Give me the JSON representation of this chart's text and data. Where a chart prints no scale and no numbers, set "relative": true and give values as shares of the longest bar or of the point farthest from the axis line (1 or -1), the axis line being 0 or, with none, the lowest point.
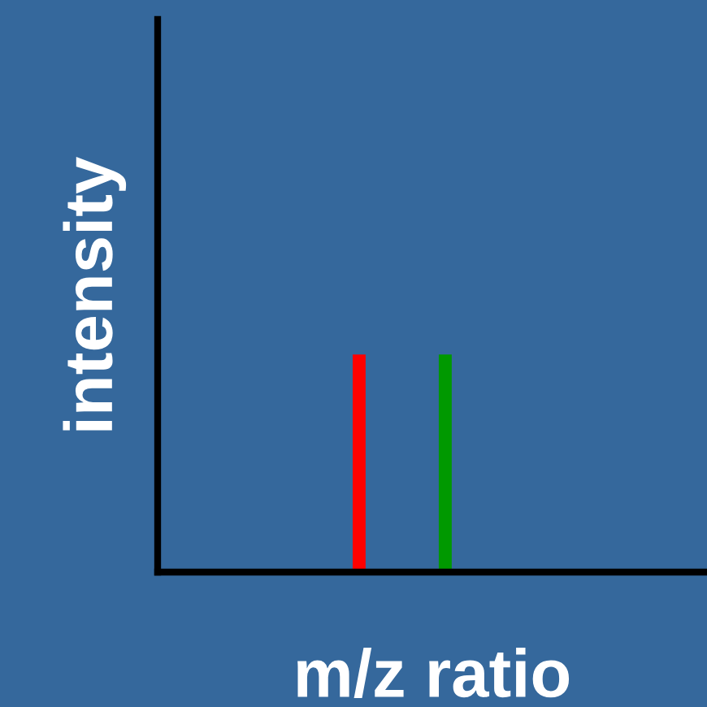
{
  "chart_data": {
    "type": "bar",
    "xlabel": "m/z ratio",
    "ylabel": "intensity",
    "relative": true,
    "categories": [
      null,
      null
    ],
    "colors": [
      "#ff0000",
      "#009900"
    ],
    "values": [
      1,
      1
    ],
    "grid": false
  }
}
